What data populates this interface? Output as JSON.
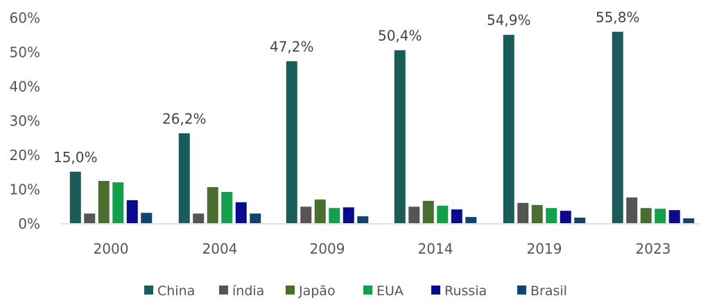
{
  "chart_data": {
    "type": "bar",
    "title": "",
    "xlabel": "",
    "ylabel": "",
    "ylim": [
      0,
      60
    ],
    "yticks": [
      "0%",
      "10%",
      "20%",
      "30%",
      "40%",
      "50%",
      "60%"
    ],
    "grid": false,
    "legend_position": "bottom",
    "categories": [
      "2000",
      "2004",
      "2009",
      "2014",
      "2019",
      "2023"
    ],
    "series": [
      {
        "name": "China",
        "color": "#1a5c5a",
        "values": [
          15.0,
          26.2,
          47.2,
          50.4,
          54.9,
          55.8
        ]
      },
      {
        "name": "índia",
        "color": "#555555",
        "values": [
          2.8,
          2.8,
          4.8,
          4.8,
          5.9,
          7.5
        ]
      },
      {
        "name": "Japão",
        "color": "#4a6e2e",
        "values": [
          12.3,
          10.5,
          6.9,
          6.5,
          5.3,
          4.4
        ]
      },
      {
        "name": "EUA",
        "color": "#12a04a",
        "values": [
          11.9,
          9.1,
          4.4,
          5.1,
          4.4,
          4.2
        ]
      },
      {
        "name": "Russia",
        "color": "#0a0a8c",
        "values": [
          6.7,
          6.1,
          4.6,
          4.0,
          3.6,
          3.8
        ]
      },
      {
        "name": "Brasil",
        "color": "#0f4470",
        "values": [
          3.0,
          2.8,
          2.0,
          1.8,
          1.6,
          1.4
        ]
      }
    ],
    "data_labels": [
      "15,0%",
      "26,2%",
      "47,2%",
      "50,4%",
      "54,9%",
      "55,8%"
    ]
  }
}
